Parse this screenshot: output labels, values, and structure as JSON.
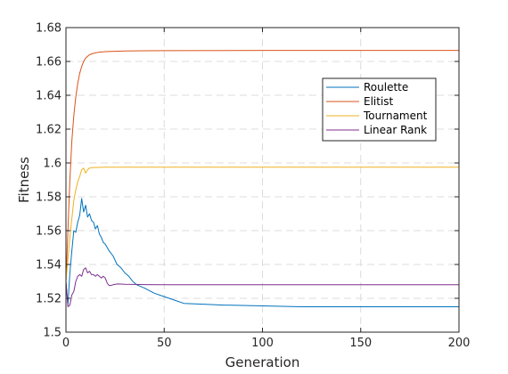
{
  "chart_data": {
    "type": "line",
    "title": "",
    "xlabel": "Generation",
    "ylabel": "Fitness",
    "xlim": [
      0,
      200
    ],
    "ylim": [
      1.5,
      1.68
    ],
    "xticks": [
      0,
      50,
      100,
      150,
      200
    ],
    "xtick_labels": [
      "0",
      "50",
      "100",
      "150",
      "200"
    ],
    "yticks": [
      1.5,
      1.52,
      1.54,
      1.56,
      1.58,
      1.6,
      1.62,
      1.64,
      1.66,
      1.68
    ],
    "ytick_labels": [
      "1.5",
      "1.52",
      "1.54",
      "1.56",
      "1.58",
      "1.6",
      "1.62",
      "1.64",
      "1.66",
      "1.68"
    ],
    "grid": true,
    "legend_position": "top-right",
    "series": [
      {
        "name": "Roulette",
        "color": "#0072BD",
        "x": [
          0,
          1,
          2,
          3,
          4,
          5,
          6,
          7,
          8,
          9,
          10,
          11,
          12,
          13,
          14,
          15,
          16,
          17,
          18,
          19,
          20,
          22,
          24,
          26,
          28,
          30,
          32,
          34,
          36,
          38,
          40,
          45,
          50,
          55,
          60,
          70,
          80,
          100,
          120,
          150,
          200
        ],
        "y": [
          1.53,
          1.516,
          1.535,
          1.548,
          1.56,
          1.559,
          1.565,
          1.569,
          1.579,
          1.571,
          1.575,
          1.568,
          1.57,
          1.566,
          1.565,
          1.561,
          1.563,
          1.558,
          1.556,
          1.553,
          1.552,
          1.548,
          1.545,
          1.54,
          1.538,
          1.535,
          1.533,
          1.53,
          1.528,
          1.527,
          1.526,
          1.523,
          1.521,
          1.519,
          1.517,
          1.5165,
          1.516,
          1.5155,
          1.515,
          1.515,
          1.515
        ]
      },
      {
        "name": "Elitist",
        "color": "#D95319",
        "x": [
          0,
          1,
          2,
          3,
          4,
          5,
          6,
          7,
          8,
          9,
          10,
          12,
          14,
          16,
          18,
          20,
          25,
          30,
          40,
          50,
          100,
          150,
          200
        ],
        "y": [
          1.53,
          1.56,
          1.59,
          1.613,
          1.628,
          1.639,
          1.647,
          1.653,
          1.657,
          1.66,
          1.662,
          1.664,
          1.6648,
          1.6653,
          1.6656,
          1.6658,
          1.666,
          1.6662,
          1.6663,
          1.6664,
          1.6665,
          1.6665,
          1.6665
        ]
      },
      {
        "name": "Tournament",
        "color": "#EDB120",
        "x": [
          0,
          1,
          2,
          3,
          4,
          5,
          6,
          7,
          8,
          9,
          10,
          11,
          12,
          13,
          14,
          16,
          20,
          30,
          50,
          100,
          150,
          200
        ],
        "y": [
          1.53,
          1.543,
          1.556,
          1.567,
          1.578,
          1.584,
          1.589,
          1.592,
          1.596,
          1.597,
          1.594,
          1.596,
          1.597,
          1.5972,
          1.5973,
          1.5974,
          1.5975,
          1.5975,
          1.5975,
          1.5975,
          1.5975,
          1.5975
        ]
      },
      {
        "name": "Linear Rank",
        "color": "#7E2F8E",
        "x": [
          0,
          1,
          2,
          3,
          4,
          5,
          6,
          7,
          8,
          9,
          10,
          11,
          12,
          13,
          14,
          15,
          16,
          17,
          18,
          19,
          20,
          21,
          22,
          23,
          24,
          26,
          28,
          30,
          35,
          40,
          50,
          100,
          150,
          200
        ],
        "y": [
          1.53,
          1.515,
          1.516,
          1.522,
          1.524,
          1.53,
          1.533,
          1.534,
          1.533,
          1.537,
          1.538,
          1.535,
          1.536,
          1.534,
          1.534,
          1.533,
          1.534,
          1.533,
          1.532,
          1.533,
          1.532,
          1.529,
          1.5275,
          1.5277,
          1.528,
          1.5285,
          1.5284,
          1.5283,
          1.5282,
          1.5281,
          1.528,
          1.528,
          1.528,
          1.528
        ]
      }
    ]
  }
}
